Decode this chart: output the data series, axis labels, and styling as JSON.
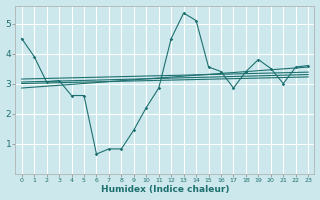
{
  "title": "",
  "xlabel": "Humidex (Indice chaleur)",
  "bg_color": "#cce8ec",
  "grid_color": "#ffffff",
  "line_color": "#1e7070",
  "xlim": [
    -0.5,
    23.5
  ],
  "ylim": [
    0,
    5.6
  ],
  "xticks": [
    0,
    1,
    2,
    3,
    4,
    5,
    6,
    7,
    8,
    9,
    10,
    11,
    12,
    13,
    14,
    15,
    16,
    17,
    18,
    19,
    20,
    21,
    22,
    23
  ],
  "yticks": [
    1,
    2,
    3,
    4,
    5
  ],
  "wavy_x": [
    0,
    1,
    2,
    3,
    4,
    5,
    6,
    7,
    8,
    9,
    10,
    11,
    12,
    13,
    14,
    15,
    16,
    17,
    18,
    19,
    20,
    21,
    22,
    23
  ],
  "wavy_y": [
    4.5,
    3.9,
    3.05,
    3.1,
    2.6,
    2.6,
    0.65,
    0.82,
    0.82,
    1.45,
    2.2,
    2.85,
    4.5,
    5.35,
    5.1,
    3.55,
    3.4,
    2.85,
    3.4,
    3.8,
    3.5,
    3.0,
    3.55,
    3.6
  ],
  "trend1_x": [
    0,
    23
  ],
  "trend1_y": [
    3.05,
    3.3
  ],
  "trend2_x": [
    0,
    23
  ],
  "trend2_y": [
    3.15,
    3.38
  ],
  "trend3_x": [
    0,
    23
  ],
  "trend3_y": [
    2.85,
    3.55
  ],
  "trend4_x": [
    0,
    23
  ],
  "trend4_y": [
    3.0,
    3.22
  ]
}
